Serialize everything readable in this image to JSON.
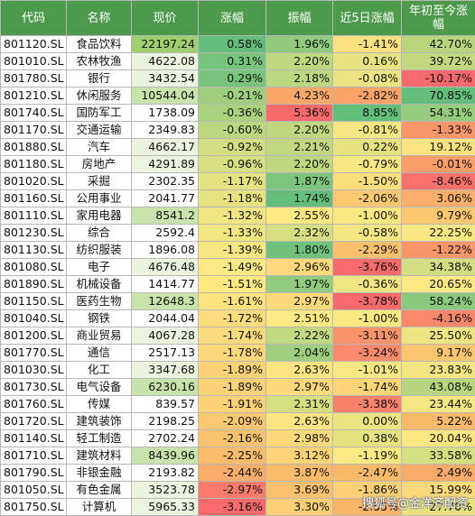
{
  "colors": {
    "header_bg": "#4d9a4d",
    "header_text": "#ffffff",
    "price_green_light": "#eaf4df",
    "price_green_mid": "#c8e3ac",
    "price_green_strong": "#9fcf6e",
    "scale_red": "#f8696b",
    "scale_orange": "#fbb96a",
    "scale_yellow": "#fde983",
    "scale_green": "#63be7b"
  },
  "headers": [
    "代码",
    "名称",
    "现价",
    "涨幅",
    "振幅",
    "近5日涨幅",
    "年初至今涨幅"
  ],
  "rows": [
    {
      "code": "801120.SL",
      "name": "食品饮料",
      "price": "22197.24",
      "chg": "0.58%",
      "amp": "1.96%",
      "chg5": "-1.41%",
      "ytd": "42.70%"
    },
    {
      "code": "801010.SL",
      "name": "农林牧渔",
      "price": "4622.08",
      "chg": "0.31%",
      "amp": "2.20%",
      "chg5": "0.16%",
      "ytd": "39.72%"
    },
    {
      "code": "801780.SL",
      "name": "银行",
      "price": "3432.54",
      "chg": "0.29%",
      "amp": "2.18%",
      "chg5": "-0.08%",
      "ytd": "-10.17%"
    },
    {
      "code": "801210.SL",
      "name": "休闲服务",
      "price": "10544.04",
      "chg": "-0.21%",
      "amp": "4.23%",
      "chg5": "-2.82%",
      "ytd": "70.85%"
    },
    {
      "code": "801740.SL",
      "name": "国防军工",
      "price": "1738.09",
      "chg": "-0.36%",
      "amp": "5.36%",
      "chg5": "8.85%",
      "ytd": "54.31%"
    },
    {
      "code": "801170.SL",
      "name": "交通运输",
      "price": "2349.83",
      "chg": "-0.60%",
      "amp": "2.20%",
      "chg5": "-0.81%",
      "ytd": "-1.33%"
    },
    {
      "code": "801880.SL",
      "name": "汽车",
      "price": "4662.17",
      "chg": "-0.92%",
      "amp": "2.21%",
      "chg5": "0.22%",
      "ytd": "19.12%"
    },
    {
      "code": "801180.SL",
      "name": "房地产",
      "price": "4291.89",
      "chg": "-0.96%",
      "amp": "2.20%",
      "chg5": "-0.79%",
      "ytd": "-0.01%"
    },
    {
      "code": "801020.SL",
      "name": "采掘",
      "price": "2302.35",
      "chg": "-1.17%",
      "amp": "1.87%",
      "chg5": "-1.50%",
      "ytd": "-8.46%"
    },
    {
      "code": "801160.SL",
      "name": "公用事业",
      "price": "2041.77",
      "chg": "-1.18%",
      "amp": "1.74%",
      "chg5": "-2.06%",
      "ytd": "3.06%"
    },
    {
      "code": "801110.SL",
      "name": "家用电器",
      "price": "8541.2",
      "chg": "-1.32%",
      "amp": "2.55%",
      "chg5": "-1.00%",
      "ytd": "9.79%"
    },
    {
      "code": "801230.SL",
      "name": "综合",
      "price": "2592.4",
      "chg": "-1.33%",
      "amp": "2.32%",
      "chg5": "-0.58%",
      "ytd": "22.25%"
    },
    {
      "code": "801130.SL",
      "name": "纺织服装",
      "price": "1896.08",
      "chg": "-1.39%",
      "amp": "1.80%",
      "chg5": "-2.29%",
      "ytd": "-1.22%"
    },
    {
      "code": "801080.SL",
      "name": "电子",
      "price": "4676.48",
      "chg": "-1.49%",
      "amp": "2.96%",
      "chg5": "-3.76%",
      "ytd": "34.38%"
    },
    {
      "code": "801890.SL",
      "name": "机械设备",
      "price": "1414.77",
      "chg": "-1.51%",
      "amp": "1.97%",
      "chg5": "-0.36%",
      "ytd": "20.65%"
    },
    {
      "code": "801150.SL",
      "name": "医药生物",
      "price": "12648.3",
      "chg": "-1.61%",
      "amp": "2.97%",
      "chg5": "-3.78%",
      "ytd": "58.24%"
    },
    {
      "code": "801040.SL",
      "name": "钢铁",
      "price": "2044.04",
      "chg": "-1.72%",
      "amp": "2.51%",
      "chg5": "-1.00%",
      "ytd": "-4.16%"
    },
    {
      "code": "801200.SL",
      "name": "商业贸易",
      "price": "4067.28",
      "chg": "-1.74%",
      "amp": "2.22%",
      "chg5": "-3.11%",
      "ytd": "25.50%"
    },
    {
      "code": "801770.SL",
      "name": "通信",
      "price": "2517.13",
      "chg": "-1.78%",
      "amp": "2.04%",
      "chg5": "-3.24%",
      "ytd": "9.17%"
    },
    {
      "code": "801030.SL",
      "name": "化工",
      "price": "3347.68",
      "chg": "-1.89%",
      "amp": "2.63%",
      "chg5": "-1.01%",
      "ytd": "23.83%"
    },
    {
      "code": "801730.SL",
      "name": "电气设备",
      "price": "6230.16",
      "chg": "-1.89%",
      "amp": "2.97%",
      "chg5": "-1.74%",
      "ytd": "43.08%"
    },
    {
      "code": "801760.SL",
      "name": "传媒",
      "price": "839.57",
      "chg": "-1.91%",
      "amp": "2.31%",
      "chg5": "-3.38%",
      "ytd": "23.44%"
    },
    {
      "code": "801720.SL",
      "name": "建筑装饰",
      "price": "2198.25",
      "chg": "-2.09%",
      "amp": "2.63%",
      "chg5": "0.00%",
      "ytd": "5.22%"
    },
    {
      "code": "801140.SL",
      "name": "轻工制造",
      "price": "2702.24",
      "chg": "-2.16%",
      "amp": "2.98%",
      "chg5": "0.38%",
      "ytd": "20.04%"
    },
    {
      "code": "801710.SL",
      "name": "建筑材料",
      "price": "8439.96",
      "chg": "-2.25%",
      "amp": "3.12%",
      "chg5": "-1.19%",
      "ytd": "33.58%"
    },
    {
      "code": "801790.SL",
      "name": "非银金融",
      "price": "2193.82",
      "chg": "-2.44%",
      "amp": "3.87%",
      "chg5": "-2.47%",
      "ytd": "2.49%"
    },
    {
      "code": "801050.SL",
      "name": "有色金属",
      "price": "3523.78",
      "chg": "-2.97%",
      "amp": "3.69%",
      "chg5": "-1.86%",
      "ytd": "15.99%"
    },
    {
      "code": "801750.SL",
      "name": "计算机",
      "price": "5965.33",
      "chg": "-3.16%",
      "amp": "3.30%",
      "chg5": "-2.55%",
      "ytd": "27.70%"
    }
  ],
  "watermark": "搜狐号@金洋齐配资"
}
